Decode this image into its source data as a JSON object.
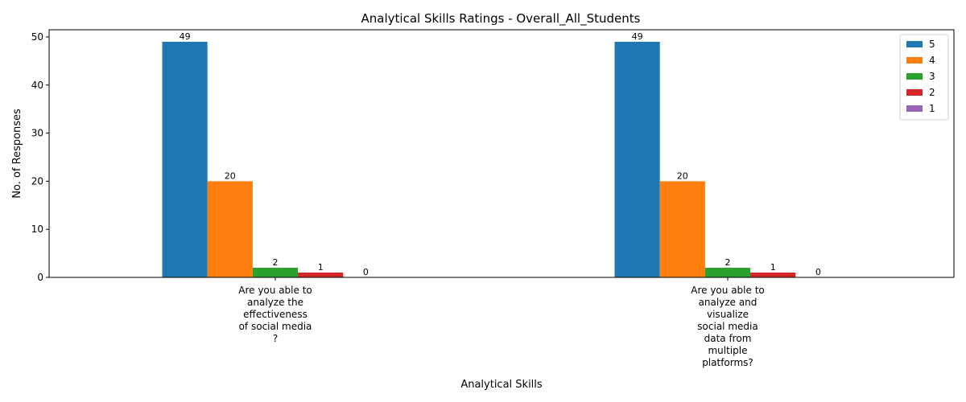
{
  "chart_data": {
    "type": "bar",
    "title": "Analytical Skills Ratings - Overall_All_Students",
    "xlabel": "Analytical Skills",
    "ylabel": "No. of Responses",
    "ylim": [
      0,
      51.5
    ],
    "yticks": [
      0,
      10,
      20,
      30,
      40,
      50
    ],
    "grid": false,
    "legend_position": "top-right",
    "categories": [
      [
        "Are you able to",
        "analyze the",
        "effectiveness",
        "of social media",
        "?"
      ],
      [
        "Are you able to",
        "analyze and",
        "visualize",
        "social media",
        "data from",
        "multiple",
        "platforms?"
      ]
    ],
    "series": [
      {
        "name": "5",
        "color": "#1f77b4",
        "values": [
          49,
          49
        ]
      },
      {
        "name": "4",
        "color": "#ff7f0e",
        "values": [
          20,
          20
        ]
      },
      {
        "name": "3",
        "color": "#2ca02c",
        "values": [
          2,
          2
        ]
      },
      {
        "name": "2",
        "color": "#d62728",
        "values": [
          1,
          1
        ]
      },
      {
        "name": "1",
        "color": "#9467bd",
        "values": [
          0,
          0
        ]
      }
    ]
  }
}
